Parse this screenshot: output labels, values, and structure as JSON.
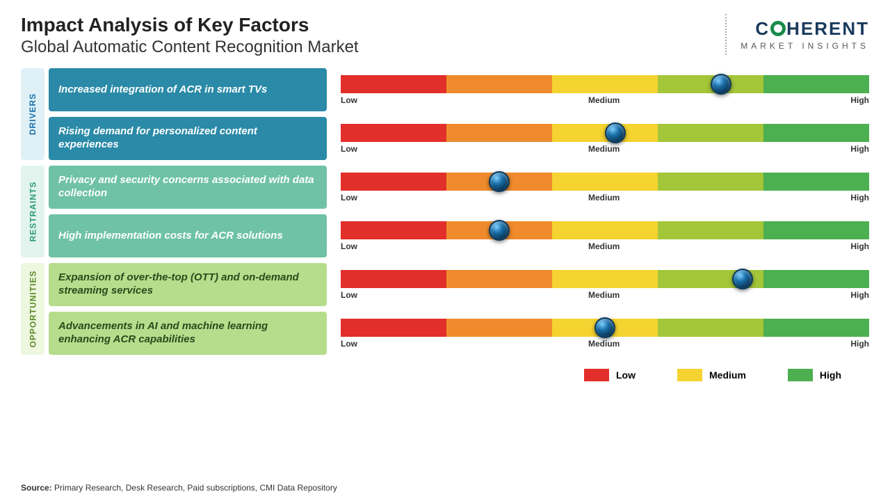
{
  "header": {
    "title": "Impact Analysis of Key Factors",
    "subtitle": "Global Automatic Content Recognition Market"
  },
  "logo": {
    "line1_pre": "C",
    "line1_post": "HERENT",
    "line2": "MARKET INSIGHTS",
    "text_color": "#1a3a5c",
    "ring_color": "#1a8a4a"
  },
  "gauge": {
    "segment_colors": [
      "#e22f2a",
      "#ef8b2c",
      "#f5d330",
      "#a4c639",
      "#4caf50"
    ],
    "labels": {
      "low": "Low",
      "medium": "Medium",
      "high": "High"
    },
    "label_fontsize": 12,
    "marker_color": "#1a6fa8"
  },
  "categories": [
    {
      "name": "DRIVERS",
      "tab_bg": "#dff1f7",
      "tab_text": "#1a6fa8",
      "factor_bg": "#2a8aa8",
      "factor_text": "#ffffff",
      "items": [
        {
          "label": "Increased integration of ACR in smart TVs",
          "value_pct": 72
        },
        {
          "label": "Rising demand for personalized content experiences",
          "value_pct": 52
        }
      ]
    },
    {
      "name": "RESTRAINTS",
      "tab_bg": "#e3f4ee",
      "tab_text": "#2a9a7a",
      "factor_bg": "#6fc2a5",
      "factor_text": "#ffffff",
      "items": [
        {
          "label": "Privacy and security concerns associated with data collection",
          "value_pct": 30
        },
        {
          "label": "High implementation costs for ACR solutions",
          "value_pct": 30
        }
      ]
    },
    {
      "name": "OPPORTUNITIES",
      "tab_bg": "#eef7df",
      "tab_text": "#5a8a2a",
      "factor_bg": "#b5dd8c",
      "factor_text": "#2a4a1a",
      "items": [
        {
          "label": "Expansion of over-the-top (OTT) and on-demand streaming services",
          "value_pct": 76
        },
        {
          "label": "Advancements in AI and machine learning enhancing ACR capabilities",
          "value_pct": 50
        }
      ]
    }
  ],
  "legend": {
    "items": [
      {
        "label": "Low",
        "color": "#e22f2a"
      },
      {
        "label": "Medium",
        "color": "#f5d330"
      },
      {
        "label": "High",
        "color": "#4caf50"
      }
    ]
  },
  "source": {
    "prefix": "Source:",
    "text": "Primary Research, Desk Research, Paid subscriptions, CMI Data Repository"
  }
}
